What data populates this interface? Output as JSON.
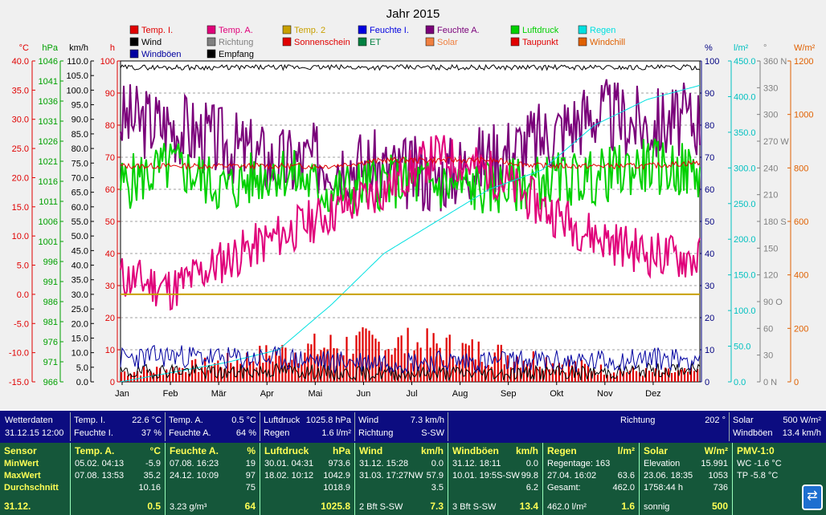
{
  "chart_data": {
    "type": "line",
    "title": "Jahr 2015",
    "x_ticks": [
      "Jan",
      "Feb",
      "Mär",
      "Apr",
      "Mai",
      "Jun",
      "Jul",
      "Aug",
      "Sep",
      "Okt",
      "Nov",
      "Dez"
    ],
    "axes": {
      "temp": {
        "unit": "°C",
        "color": "#e00000",
        "ticks": [
          "40.0",
          "35.0",
          "30.0",
          "25.0",
          "20.0",
          "15.0",
          "10.0",
          "5.0",
          "0.0",
          "-5.0",
          "-10.0",
          "-15.0"
        ]
      },
      "press": {
        "unit": "hPa",
        "color": "#00a000",
        "ticks": [
          "1046",
          "1041",
          "1036",
          "1031",
          "1026",
          "1021",
          "1016",
          "1011",
          "1006",
          "1001",
          "996",
          "991",
          "986",
          "981",
          "976",
          "971",
          "966"
        ]
      },
      "wind": {
        "unit": "km/h",
        "color": "#000000",
        "ticks": [
          "110.0",
          "105.0",
          "100.0",
          "95.0",
          "90.0",
          "85.0",
          "80.0",
          "75.0",
          "70.0",
          "65.0",
          "60.0",
          "55.0",
          "50.0",
          "45.0",
          "40.0",
          "35.0",
          "30.0",
          "25.0",
          "20.0",
          "15.0",
          "10.0",
          "5.0",
          "0.0"
        ]
      },
      "sun": {
        "unit": "h",
        "color": "#e00000",
        "ticks": [
          "100",
          "90",
          "80",
          "70",
          "60",
          "50",
          "40",
          "30",
          "20",
          "10",
          "0"
        ]
      },
      "hum": {
        "unit": "%",
        "color": "#000080",
        "ticks": [
          "100",
          "90",
          "80",
          "70",
          "60",
          "50",
          "40",
          "30",
          "20",
          "10",
          "0"
        ]
      },
      "rain": {
        "unit": "l/m²",
        "color": "#00c0c0",
        "ticks": [
          "450.0",
          "400.0",
          "350.0",
          "300.0",
          "250.0",
          "200.0",
          "150.0",
          "100.0",
          "50.0",
          "0.0"
        ]
      },
      "dir": {
        "unit": "°",
        "color": "#808080",
        "ticks": [
          "360 N",
          "330",
          "300",
          "270 W",
          "240",
          "210",
          "180 S",
          "150",
          "120",
          "90 O",
          "60",
          "30",
          "0 N"
        ]
      },
      "solar": {
        "unit": "W/m²",
        "color": "#e06000",
        "ticks": [
          "1200",
          "1000",
          "800",
          "600",
          "400",
          "200",
          "0"
        ]
      }
    },
    "legend": [
      {
        "name": "Temp. I.",
        "color": "#e00000"
      },
      {
        "name": "Temp. A.",
        "color": "#e0007a"
      },
      {
        "name": "Temp. 2",
        "color": "#c8a000"
      },
      {
        "name": "Feuchte I.",
        "color": "#0000e0"
      },
      {
        "name": "Feuchte A.",
        "color": "#7a007a"
      },
      {
        "name": "Luftdruck",
        "color": "#00d000"
      },
      {
        "name": "Regen",
        "color": "#00e0e0"
      },
      {
        "name": "Wind",
        "color": "#000000"
      },
      {
        "name": "Richtung",
        "color": "#808080"
      },
      {
        "name": "Sonnenschein",
        "color": "#e00000"
      },
      {
        "name": "ET",
        "color": "#008040"
      },
      {
        "name": "Solar",
        "color": "#f08040"
      },
      {
        "name": "Taupunkt",
        "color": "#e00000"
      },
      {
        "name": "Windchill",
        "color": "#e06000"
      },
      {
        "name": "Windböen",
        "color": "#0000a0"
      },
      {
        "name": "Empfang",
        "color": "#000000"
      }
    ],
    "series_monthly_approx": {
      "Feuchte A. (%)": [
        82,
        80,
        74,
        68,
        70,
        66,
        64,
        70,
        76,
        84,
        80,
        82
      ],
      "Temp. A. (°C)": [
        3,
        1,
        6,
        10,
        14,
        18,
        24,
        21,
        15,
        10,
        7,
        6
      ],
      "Luftdruck (hPa)": [
        1015,
        1020,
        1014,
        1019,
        1013,
        1016,
        1015,
        1014,
        1016,
        1017,
        1020,
        1018
      ],
      "Regen kumuliert (l/m²)": [
        0,
        15,
        30,
        50,
        120,
        200,
        250,
        300,
        330,
        400,
        440,
        462
      ],
      "Temp. I. (°C)": [
        22,
        22,
        22,
        22,
        22,
        23,
        23,
        23,
        22,
        22,
        22,
        22.6
      ],
      "Sonnenschein (h)": [
        3,
        4,
        6,
        9,
        11,
        12,
        11,
        9,
        7,
        4,
        3,
        3
      ]
    }
  },
  "bar1": {
    "c1": {
      "a": "Wetterdaten",
      "b": "31.12.15 12:00"
    },
    "c2": {
      "l1": "Temp. I.",
      "v1": "22.6 °C",
      "l2": "Feuchte I.",
      "v2": "37 %"
    },
    "c3": {
      "l1": "Temp. A.",
      "v1": "0.5 °C",
      "l2": "Feuchte A.",
      "v2": "64 %"
    },
    "c4": {
      "l1": "Luftdruck",
      "v1": "1025.8 hPa",
      "l2": "Regen",
      "v2": "1.6 l/m²"
    },
    "c5": {
      "l1": "Wind",
      "v1": "7.3 km/h",
      "l2": "Richtung",
      "v2": "S-SW"
    },
    "c6": {
      "l1": "Richtung",
      "v1": "202 °"
    },
    "c7": {
      "l1": "Solar",
      "v1": "500 W/m²",
      "l2": "Windböen",
      "v2": "13.4 km/h"
    }
  },
  "stats": {
    "sensor": {
      "h": "Sensor",
      "r1": "MinWert",
      "r2": "MaxWert",
      "r3": "Durchschnitt",
      "date": "31.12."
    },
    "temp": {
      "h": "Temp. A.",
      "u": "°C",
      "min_d": "05.02.  04:13",
      "min": "-5.9",
      "max_d": "07.08.  13:53",
      "max": "35.2",
      "avg": "10.16",
      "cur": "0.5"
    },
    "hum": {
      "h": "Feuchte A.",
      "u": "%",
      "min_d": "07.08.  16:23",
      "min": "19",
      "max_d": "24.12.  10:09",
      "max": "97",
      "avg": "75",
      "abs": "3.23 g/m³",
      "cur": "64"
    },
    "press": {
      "h": "Luftdruck",
      "u": "hPa",
      "min_d": "30.01.  04:31",
      "min": "973.6",
      "max_d": "18.02.  10:12",
      "max": "1042.9",
      "avg": "1018.9",
      "cur": "1025.8"
    },
    "wind": {
      "h": "Wind",
      "u": "km/h",
      "min_d": "31.12.  15:28",
      "min": "0.0",
      "max_d": "31.03.  17:27",
      "max_dir": "NW",
      "max": "57.9",
      "avg": "3.5",
      "bft": "2 Bft S-SW",
      "cur": "7.3"
    },
    "gust": {
      "h": "Windböen",
      "u": "km/h",
      "min_d": "31.12.  18:11",
      "min": "0.0",
      "max_d": "10.01.  19:5",
      "max_dir": "S-SW",
      "max": "99.8",
      "avg": "6.2",
      "bft": "3 Bft S-SW",
      "cur": "13.4"
    },
    "rain": {
      "h": "Regen",
      "u": "l/m²",
      "days": "Regentage: 163",
      "max_d": "27.04.  16:02",
      "max": "63.6",
      "total_l": "Gesamt:",
      "total": "462.0",
      "sum": "462.0 l/m²",
      "cur": "1.6"
    },
    "solar": {
      "h": "Solar",
      "u": "W/m²",
      "elev_l": "Elevation",
      "elev": "15.991",
      "max_d": "23.06.  18:35",
      "max": "1053",
      "hours": "1758:44 h",
      "hours_v": "736",
      "state": "sonnig",
      "cur": "500"
    },
    "pmv": {
      "h": "PMV-1:0",
      "wc": "WC -1.6 °C",
      "tp": "TP -5.8 °C"
    }
  }
}
